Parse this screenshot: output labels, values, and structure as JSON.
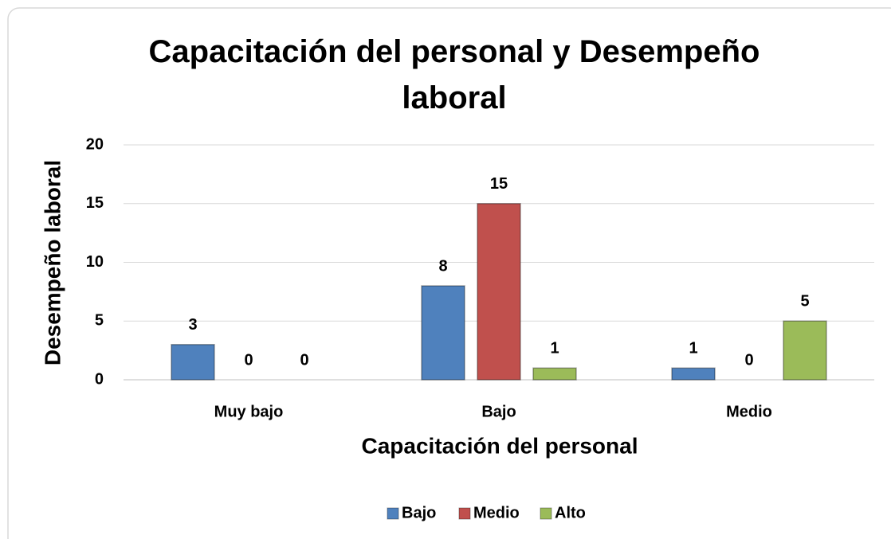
{
  "chart_data": {
    "type": "bar",
    "title": "Capacitación del personal y Desempeño laboral",
    "x_label": "Capacitación del personal",
    "y_label": "Desempeño laboral",
    "categories": [
      "Muy bajo",
      "Bajo",
      "Medio"
    ],
    "series": [
      {
        "name": "Bajo",
        "color": "#4f81bd",
        "values": [
          3,
          8,
          1
        ]
      },
      {
        "name": "Medio",
        "color": "#c0504d",
        "values": [
          0,
          15,
          0
        ]
      },
      {
        "name": "Alto",
        "color": "#9bbb59",
        "values": [
          0,
          1,
          5
        ]
      }
    ],
    "ylim": [
      0,
      20
    ],
    "yticks": [
      0,
      5,
      10,
      15,
      20
    ],
    "grid": true,
    "legend": "bottom"
  }
}
